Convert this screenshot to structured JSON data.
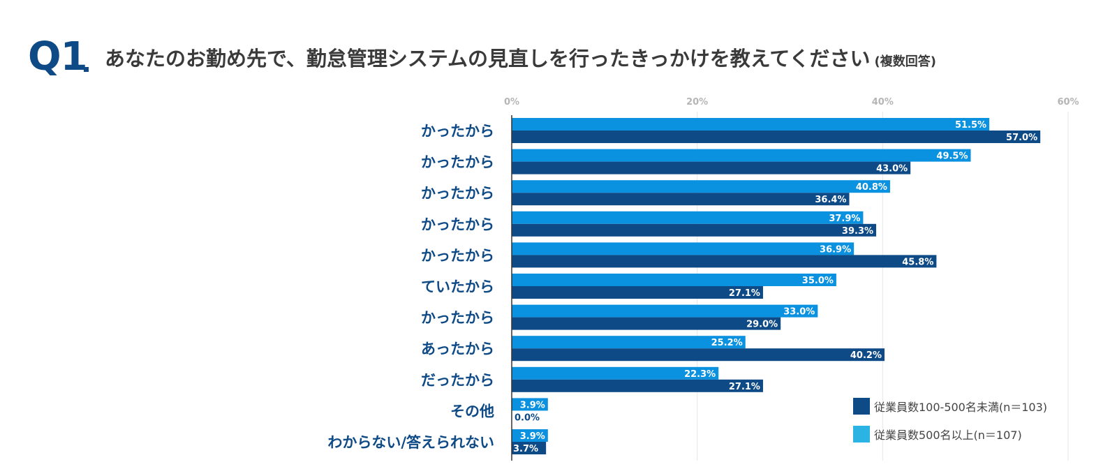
{
  "header": {
    "q_number": "Q1",
    "title": "あなたのお勤め先で、勤怠管理システムの見直しを行ったきっかけを教えてください",
    "note": "(複数回答)"
  },
  "colors": {
    "series_large": "#0a91e0",
    "series_small": "#0e4a86",
    "legend_large": "#2ab3e3",
    "grid": "#e6e6e6",
    "axis": "#333333"
  },
  "chart_data": {
    "type": "bar",
    "orientation": "horizontal",
    "xlim": [
      0,
      60
    ],
    "ticks": [
      "0%",
      "20%",
      "40%",
      "60%"
    ],
    "tick_values": [
      0,
      20,
      40,
      60
    ],
    "grid": true,
    "legend_position": "bottom-right",
    "categories": [
      "かったから",
      "かったから",
      "かったから",
      "かったから",
      "かったから",
      "ていたから",
      "かったから",
      "あったから",
      "だったから",
      "その他",
      "わからない/答えられない"
    ],
    "series": [
      {
        "name": "従業員数500名以上(n＝107)",
        "values": [
          51.5,
          49.5,
          40.8,
          37.9,
          36.9,
          35.0,
          33.0,
          25.2,
          22.3,
          3.9,
          3.9
        ],
        "labels": [
          "51.5%",
          "49.5%",
          "40.8%",
          "37.9%",
          "36.9%",
          "35.0%",
          "33.0%",
          "25.2%",
          "22.3%",
          "3.9%",
          "3.9%"
        ]
      },
      {
        "name": "従業員数100-500名未満(n＝103)",
        "values": [
          57.0,
          43.0,
          36.4,
          39.3,
          45.8,
          27.1,
          29.0,
          40.2,
          27.1,
          0.0,
          3.7
        ],
        "labels": [
          "57.0%",
          "43.0%",
          "36.4%",
          "39.3%",
          "45.8%",
          "27.1%",
          "29.0%",
          "40.2%",
          "27.1%",
          "0.0%",
          "3.7%"
        ]
      }
    ]
  },
  "legend": [
    {
      "label": "従業員数100-500名未満(n＝103)",
      "color": "#0e4a86"
    },
    {
      "label": "従業員数500名以上(n＝107)",
      "color": "#2ab3e3"
    }
  ]
}
